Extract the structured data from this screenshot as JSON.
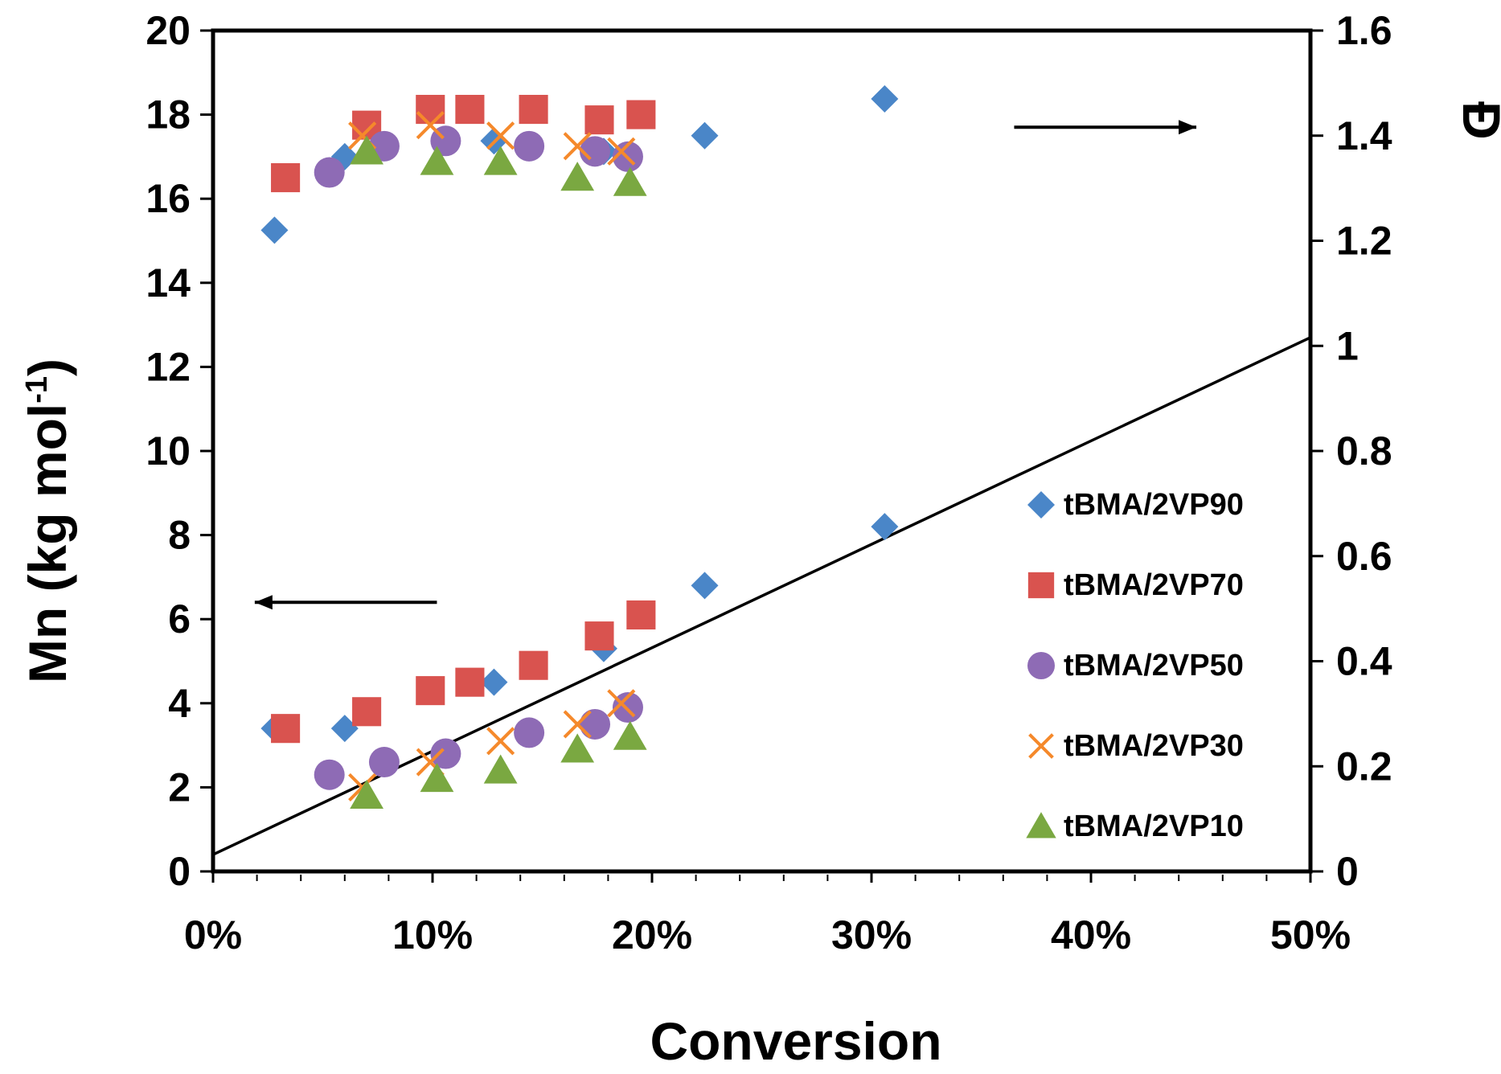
{
  "chart_data": {
    "type": "scatter",
    "xlabel": "Conversion",
    "ylabel": "Mn (kg mol",
    "ylabel_sup": "-1",
    "ylabel_close": ")",
    "y2label": "Đ",
    "xlim": [
      0,
      50
    ],
    "ylim": [
      0,
      20
    ],
    "y2lim": [
      0,
      1.6
    ],
    "x_ticks": [
      0,
      10,
      20,
      30,
      40,
      50
    ],
    "x_tick_labels": [
      "0%",
      "10%",
      "20%",
      "30%",
      "40%",
      "50%"
    ],
    "y_ticks": [
      0,
      2,
      4,
      6,
      8,
      10,
      12,
      14,
      16,
      18,
      20
    ],
    "y_tick_labels": [
      "0",
      "2",
      "4",
      "6",
      "8",
      "10",
      "12",
      "14",
      "16",
      "18",
      "20"
    ],
    "y2_ticks": [
      0,
      0.2,
      0.4,
      0.6,
      0.8,
      1.0,
      1.2,
      1.4,
      1.6
    ],
    "y2_tick_labels": [
      "0",
      "0.2",
      "0.4",
      "0.6",
      "0.8",
      "1",
      "1.2",
      "1.4",
      "1.6"
    ],
    "theory_line": {
      "x": [
        0,
        50
      ],
      "y": [
        0.4,
        12.7
      ]
    },
    "arrows": [
      {
        "direction": "left",
        "x_from": 10.2,
        "x_to": 1.9,
        "y": 6.4,
        "meaning": "Mn axis"
      },
      {
        "direction": "right",
        "x_from": 36.5,
        "x_to": 44.8,
        "y": 17.7,
        "meaning": "dispersity axis"
      }
    ],
    "series": [
      {
        "name": "tBMA/2VP90",
        "marker": "diamond",
        "color": "#4a86c8",
        "mn": {
          "x": [
            2.8,
            6.0,
            12.8,
            17.8,
            22.4,
            30.6
          ],
          "y": [
            3.4,
            3.4,
            4.5,
            5.3,
            6.8,
            8.2
          ]
        },
        "dispersity": {
          "x": [
            2.8,
            6.0,
            12.8,
            17.8,
            22.4,
            30.6
          ],
          "y": [
            1.22,
            1.36,
            1.39,
            1.37,
            1.4,
            1.47
          ]
        }
      },
      {
        "name": "tBMA/2VP70",
        "marker": "square",
        "color": "#d9534f",
        "mn": {
          "x": [
            3.3,
            7.0,
            9.9,
            11.7,
            14.6,
            17.6,
            19.5
          ],
          "y": [
            3.4,
            3.8,
            4.3,
            4.5,
            4.9,
            5.6,
            6.1
          ]
        },
        "dispersity": {
          "x": [
            3.3,
            7.0,
            9.9,
            11.7,
            14.6,
            17.6,
            19.5
          ],
          "y": [
            1.32,
            1.42,
            1.45,
            1.45,
            1.45,
            1.43,
            1.44
          ]
        }
      },
      {
        "name": "tBMA/2VP50",
        "marker": "circle",
        "color": "#8e6bb5",
        "mn": {
          "x": [
            5.3,
            7.8,
            10.6,
            14.4,
            17.4,
            18.9
          ],
          "y": [
            2.3,
            2.6,
            2.8,
            3.3,
            3.5,
            3.9
          ]
        },
        "dispersity": {
          "x": [
            5.3,
            7.8,
            10.6,
            14.4,
            17.4,
            18.9
          ],
          "y": [
            1.33,
            1.38,
            1.39,
            1.38,
            1.37,
            1.36
          ]
        }
      },
      {
        "name": "tBMA/2VP30",
        "marker": "x",
        "color": "#f5892b",
        "mn": {
          "x": [
            6.8,
            9.9,
            13.1,
            16.6,
            18.6
          ],
          "y": [
            2.0,
            2.6,
            3.1,
            3.5,
            4.0
          ]
        },
        "dispersity": {
          "x": [
            6.8,
            9.9,
            13.1,
            16.6,
            18.6
          ],
          "y": [
            1.4,
            1.42,
            1.4,
            1.38,
            1.37
          ]
        }
      },
      {
        "name": "tBMA/2VP10",
        "marker": "triangle",
        "color": "#7aa841",
        "mn": {
          "x": [
            7.0,
            10.2,
            13.1,
            16.6,
            19.0
          ],
          "y": [
            1.8,
            2.2,
            2.4,
            2.9,
            3.2
          ]
        },
        "dispersity": {
          "x": [
            7.0,
            10.2,
            13.1,
            16.6,
            19.0
          ],
          "y": [
            1.37,
            1.35,
            1.35,
            1.32,
            1.31
          ]
        }
      }
    ]
  }
}
